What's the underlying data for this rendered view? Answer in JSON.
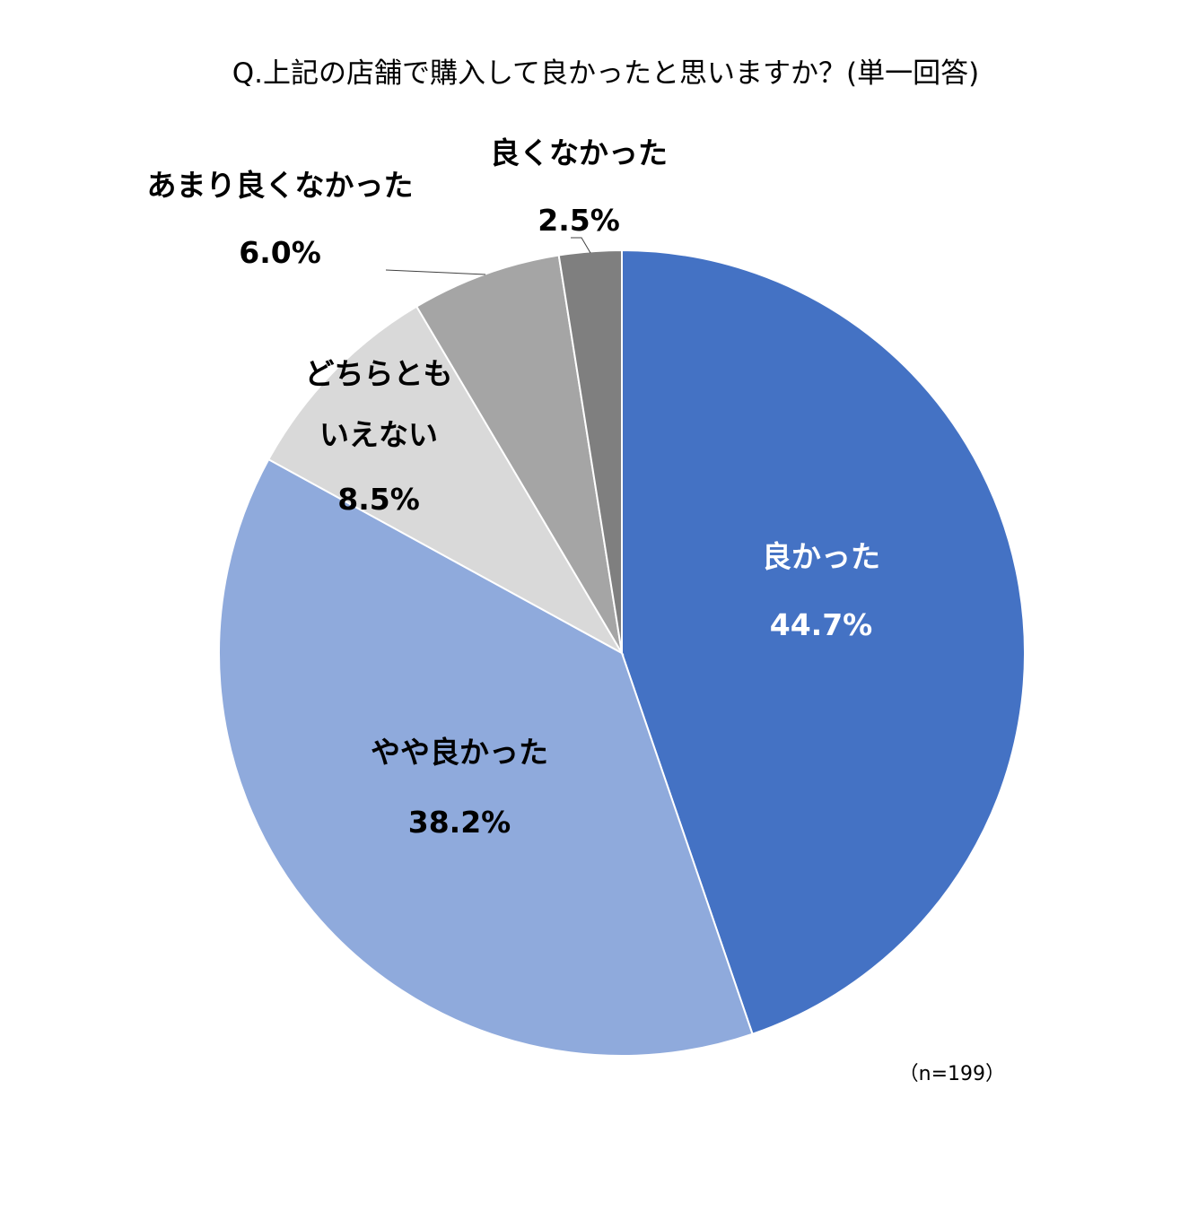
{
  "chart_data": {
    "type": "pie",
    "title": "Q.上記の店舗で購入して良かったと思いますか？(単一回答)",
    "note": "（n=199）",
    "slices": [
      {
        "label": "良かった",
        "value": 44.7,
        "display": "44.7%",
        "color": "#4472C4"
      },
      {
        "label": "やや良かった",
        "value": 38.2,
        "display": "38.2%",
        "color": "#8FAADC"
      },
      {
        "label": "どちらとも\nいえない",
        "value": 8.5,
        "display": "8.5%",
        "color": "#D9D9D9"
      },
      {
        "label": "あまり良くなかった",
        "value": 6.0,
        "display": "6.0%",
        "color": "#A5A5A5"
      },
      {
        "label": "良くなかった",
        "value": 2.5,
        "display": "2.5%",
        "color": "#7F7F7F"
      }
    ]
  }
}
